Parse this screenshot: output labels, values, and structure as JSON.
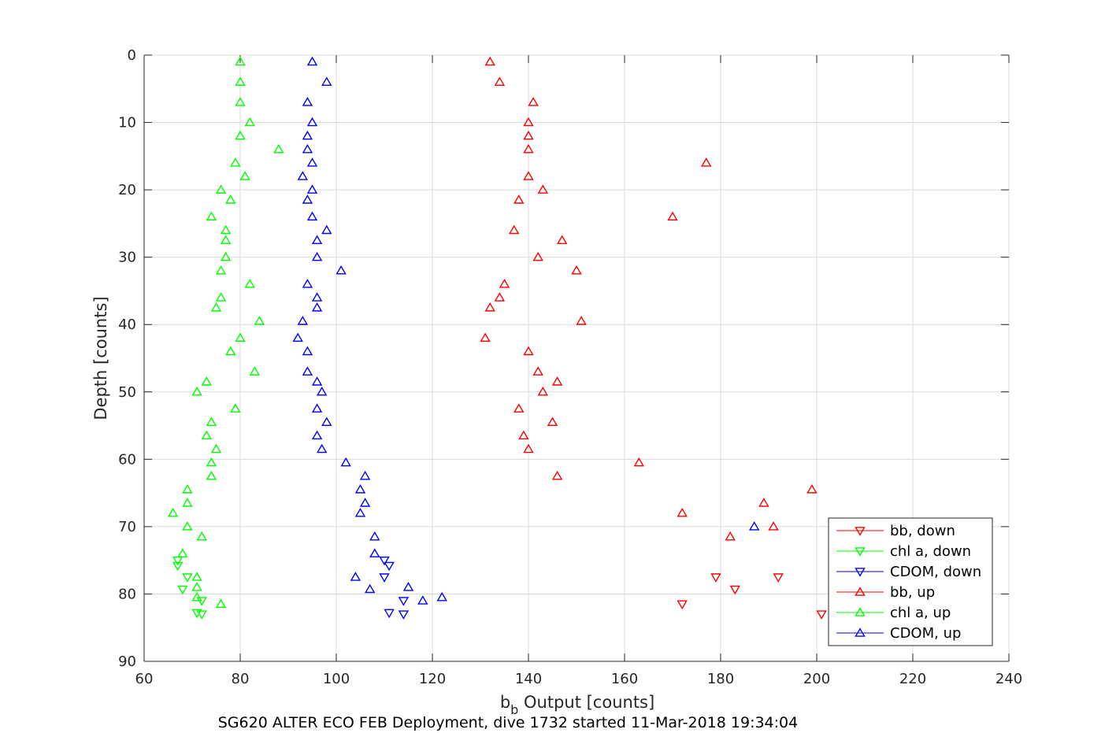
{
  "chart_data": {
    "type": "scatter",
    "title": "",
    "caption": "SG620 ALTER ECO FEB Deployment, dive 1732 started 11-Mar-2018 19:34:04",
    "xlabel_main": "b",
    "xlabel_sub": "b",
    "xlabel_rest": " Output [counts]",
    "ylabel": "Depth [counts]",
    "xlim": [
      60,
      240
    ],
    "ylim": [
      0,
      90
    ],
    "y_reversed": true,
    "grid": true,
    "xticks": [
      "60",
      "80",
      "100",
      "120",
      "140",
      "160",
      "180",
      "200",
      "220",
      "240"
    ],
    "yticks": [
      "0",
      "10",
      "20",
      "30",
      "40",
      "50",
      "60",
      "70",
      "80",
      "90"
    ],
    "legend_position": "bottom-right",
    "series": [
      {
        "name": "bb, down",
        "color": "#ff0000",
        "marker": "triangle-down",
        "points": [
          [
            172,
            81.5
          ],
          [
            183,
            79.3
          ],
          [
            179,
            77.5
          ],
          [
            192,
            77.5
          ],
          [
            201,
            83.0
          ]
        ]
      },
      {
        "name": "chl a, down",
        "color": "#00ff00",
        "marker": "triangle-down",
        "points": [
          [
            67,
            75.0
          ],
          [
            67,
            75.8
          ],
          [
            69,
            77.5
          ],
          [
            68,
            79.3
          ],
          [
            72,
            81.0
          ],
          [
            71,
            82.8
          ],
          [
            72,
            83.0
          ]
        ]
      },
      {
        "name": "CDOM, down",
        "color": "#0000ff",
        "marker": "triangle-down",
        "points": [
          [
            110,
            75.0
          ],
          [
            111,
            75.8
          ],
          [
            110,
            77.5
          ],
          [
            114,
            81.0
          ],
          [
            111,
            82.8
          ],
          [
            114,
            83.0
          ]
        ]
      },
      {
        "name": "bb, up",
        "color": "#ff0000",
        "marker": "triangle-up",
        "points": [
          [
            132,
            1.0
          ],
          [
            134,
            4.0
          ],
          [
            141,
            7.0
          ],
          [
            140,
            10.0
          ],
          [
            140,
            12.0
          ],
          [
            140,
            14.0
          ],
          [
            177,
            16.0
          ],
          [
            140,
            18.0
          ],
          [
            143,
            20.0
          ],
          [
            138,
            21.5
          ],
          [
            170,
            24.0
          ],
          [
            137,
            26.0
          ],
          [
            147,
            27.5
          ],
          [
            142,
            30.0
          ],
          [
            150,
            32.0
          ],
          [
            135,
            34.0
          ],
          [
            134,
            36.0
          ],
          [
            132,
            37.5
          ],
          [
            151,
            39.5
          ],
          [
            131,
            42.0
          ],
          [
            140,
            44.0
          ],
          [
            142,
            47.0
          ],
          [
            146,
            48.5
          ],
          [
            143,
            50.0
          ],
          [
            138,
            52.5
          ],
          [
            145,
            54.5
          ],
          [
            139,
            56.5
          ],
          [
            140,
            58.5
          ],
          [
            163,
            60.5
          ],
          [
            146,
            62.5
          ],
          [
            199,
            64.5
          ],
          [
            189,
            66.5
          ],
          [
            172,
            68.0
          ],
          [
            191,
            70.0
          ],
          [
            182,
            71.5
          ]
        ]
      },
      {
        "name": "chl a, up",
        "color": "#00ff00",
        "marker": "triangle-up",
        "points": [
          [
            80,
            1.0
          ],
          [
            80,
            4.0
          ],
          [
            80,
            7.0
          ],
          [
            82,
            10.0
          ],
          [
            80,
            12.0
          ],
          [
            88,
            14.0
          ],
          [
            79,
            16.0
          ],
          [
            81,
            18.0
          ],
          [
            76,
            20.0
          ],
          [
            78,
            21.5
          ],
          [
            74,
            24.0
          ],
          [
            77,
            26.0
          ],
          [
            77,
            27.5
          ],
          [
            77,
            30.0
          ],
          [
            76,
            32.0
          ],
          [
            82,
            34.0
          ],
          [
            76,
            36.0
          ],
          [
            75,
            37.5
          ],
          [
            84,
            39.5
          ],
          [
            80,
            42.0
          ],
          [
            78,
            44.0
          ],
          [
            83,
            47.0
          ],
          [
            73,
            48.5
          ],
          [
            71,
            50.0
          ],
          [
            79,
            52.5
          ],
          [
            74,
            54.5
          ],
          [
            73,
            56.5
          ],
          [
            75,
            58.5
          ],
          [
            74,
            60.5
          ],
          [
            74,
            62.5
          ],
          [
            69,
            64.5
          ],
          [
            69,
            66.5
          ],
          [
            66,
            68.0
          ],
          [
            69,
            70.0
          ],
          [
            72,
            71.5
          ],
          [
            68,
            74.0
          ],
          [
            71,
            77.5
          ],
          [
            71,
            79.0
          ],
          [
            71,
            80.5
          ],
          [
            76,
            81.5
          ]
        ]
      },
      {
        "name": "CDOM, up",
        "color": "#0000ff",
        "marker": "triangle-up",
        "points": [
          [
            95,
            1.0
          ],
          [
            98,
            4.0
          ],
          [
            94,
            7.0
          ],
          [
            95,
            10.0
          ],
          [
            94,
            12.0
          ],
          [
            94,
            14.0
          ],
          [
            95,
            16.0
          ],
          [
            93,
            18.0
          ],
          [
            95,
            20.0
          ],
          [
            94,
            21.5
          ],
          [
            95,
            24.0
          ],
          [
            98,
            26.0
          ],
          [
            96,
            27.5
          ],
          [
            96,
            30.0
          ],
          [
            101,
            32.0
          ],
          [
            94,
            34.0
          ],
          [
            96,
            36.0
          ],
          [
            96,
            37.5
          ],
          [
            93,
            39.5
          ],
          [
            92,
            42.0
          ],
          [
            94,
            44.0
          ],
          [
            94,
            47.0
          ],
          [
            96,
            48.5
          ],
          [
            97,
            50.0
          ],
          [
            96,
            52.5
          ],
          [
            98,
            54.5
          ],
          [
            96,
            56.5
          ],
          [
            97,
            58.5
          ],
          [
            102,
            60.5
          ],
          [
            106,
            62.5
          ],
          [
            105,
            64.5
          ],
          [
            106,
            66.5
          ],
          [
            105,
            68.0
          ],
          [
            187,
            70.0
          ],
          [
            108,
            71.5
          ],
          [
            108,
            74.0
          ],
          [
            104,
            77.5
          ],
          [
            115,
            79.0
          ],
          [
            107,
            79.3
          ],
          [
            122,
            80.5
          ],
          [
            118,
            81.0
          ]
        ]
      }
    ]
  }
}
